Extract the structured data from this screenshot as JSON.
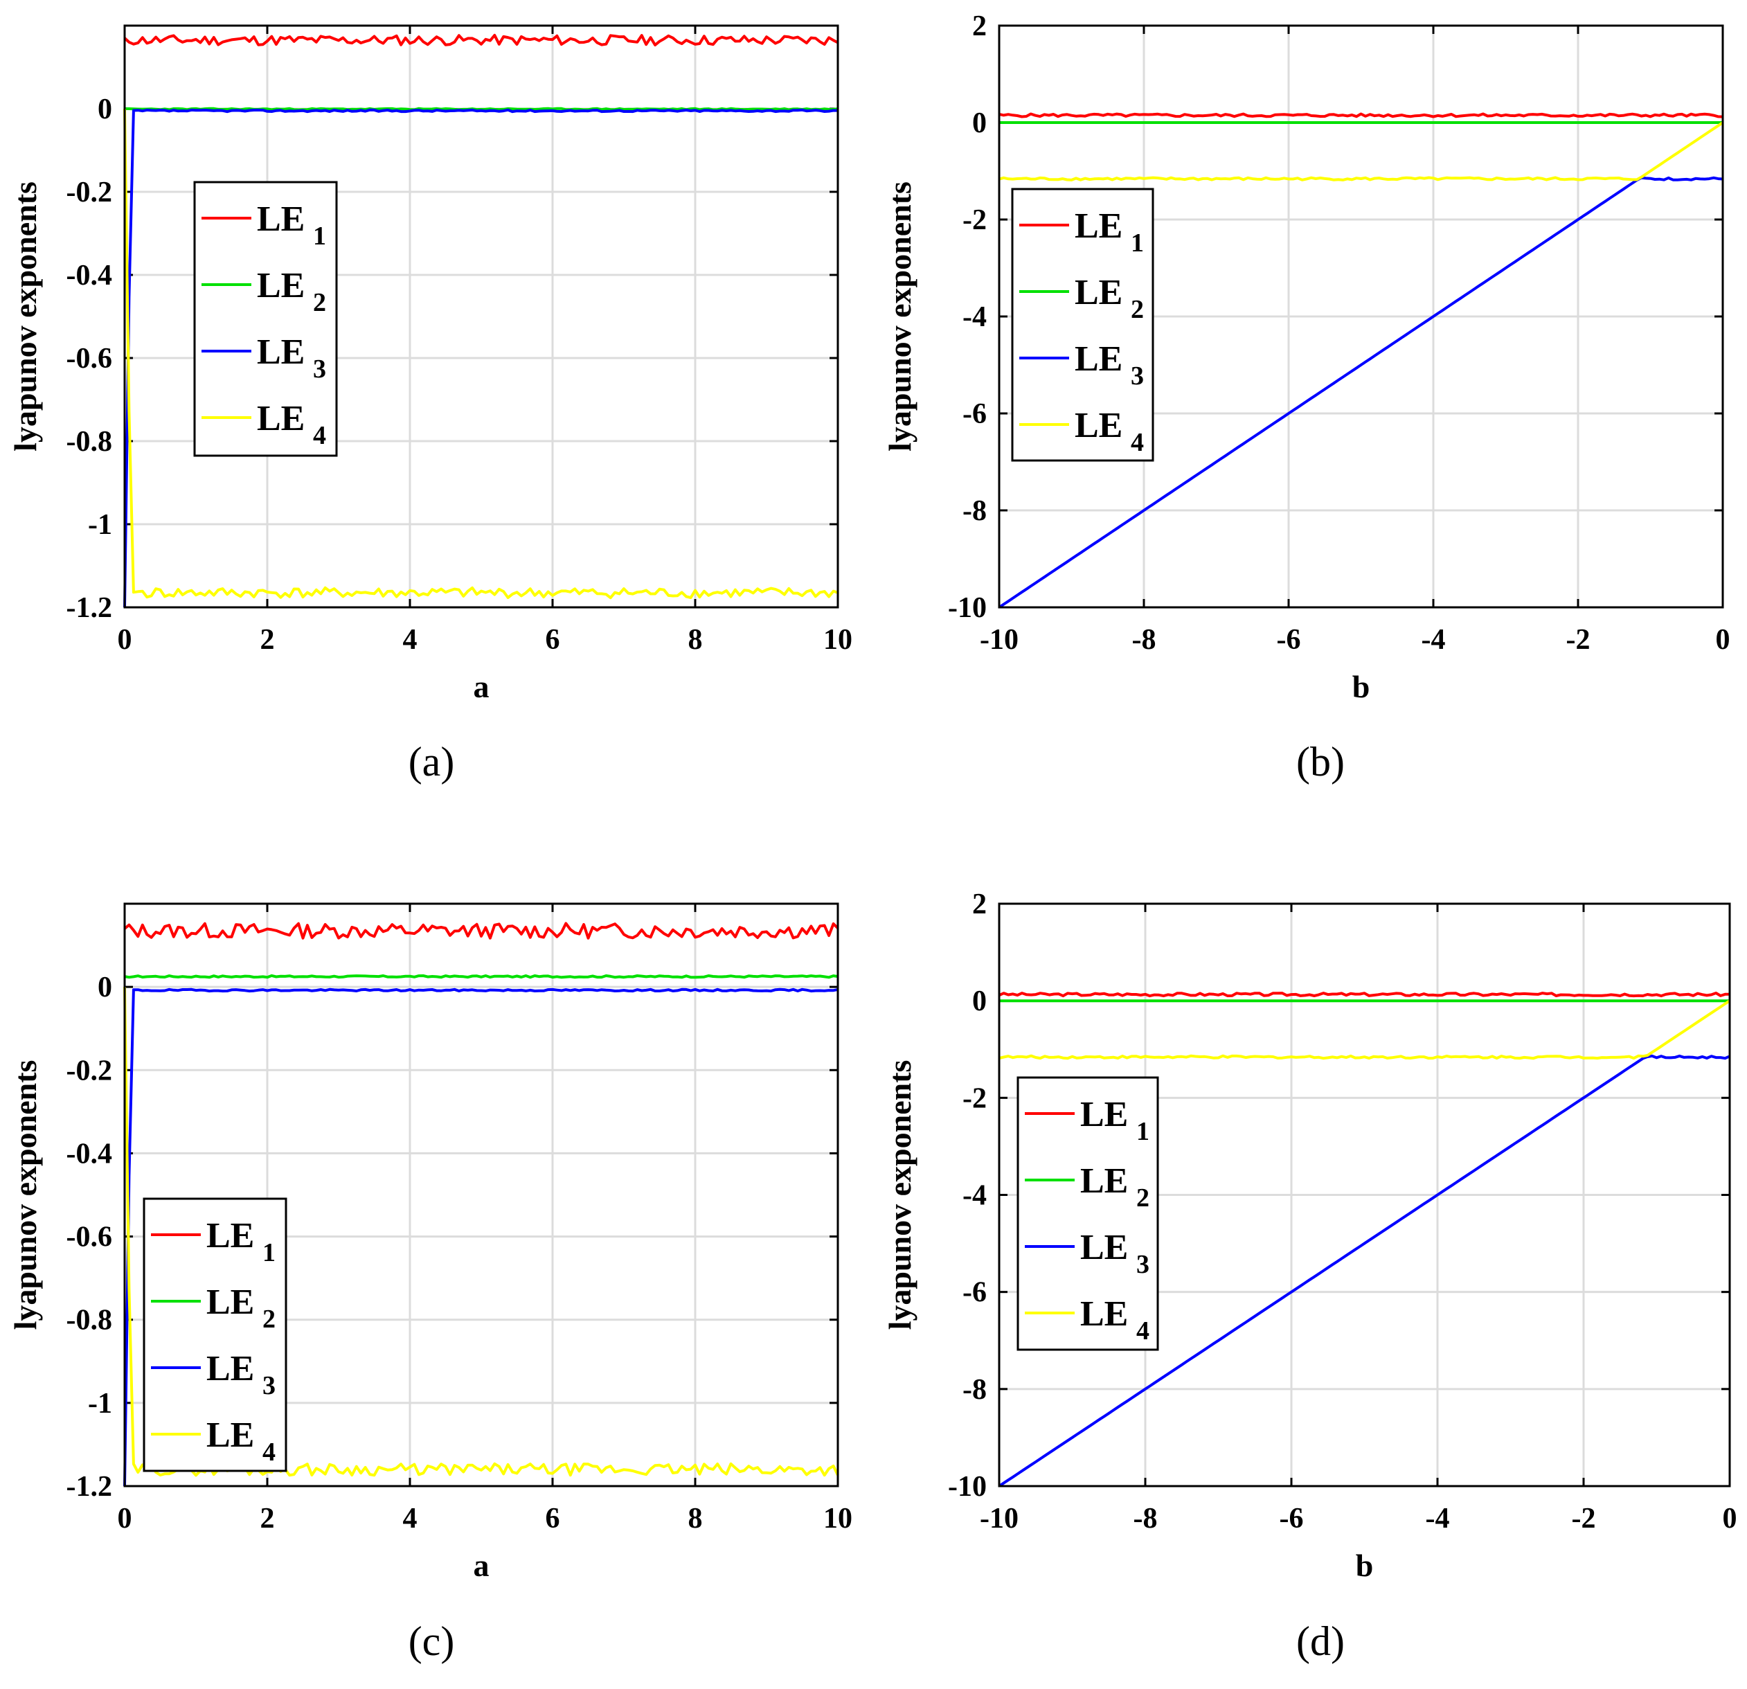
{
  "chart_data": [
    {
      "panel": "(a)",
      "type": "line",
      "xlabel": "a",
      "ylabel": "lyapunov exponents",
      "xlim": [
        0,
        10
      ],
      "ylim": [
        -1.2,
        0.2
      ],
      "xticks": [
        "0",
        "2",
        "4",
        "6",
        "8",
        "10"
      ],
      "yticks": [
        "0",
        "-0.2",
        "-0.4",
        "-0.6",
        "-0.8",
        "-1",
        "-1.2"
      ],
      "ytick_values": [
        0,
        -0.2,
        -0.4,
        -0.6,
        -0.8,
        -1,
        -1.2
      ],
      "grid": true,
      "legend": "left",
      "series": [
        {
          "name": "LE",
          "sub": "1",
          "color": "#ff0000",
          "start": 0.17,
          "level": 0.165,
          "noise": 0.012,
          "settle": 0.0,
          "seed": 11
        },
        {
          "name": "LE",
          "sub": "2",
          "color": "#00e000",
          "start": 0.0,
          "level": -0.001,
          "noise": 0.0015,
          "settle": 0.0,
          "seed": 23
        },
        {
          "name": "LE",
          "sub": "3",
          "color": "#0000ff",
          "start": -1.2,
          "level": -0.005,
          "noise": 0.002,
          "settle": 0.1,
          "seed": 37
        },
        {
          "name": "LE",
          "sub": "4",
          "color": "#ffff00",
          "start": 0.0,
          "level": -1.165,
          "noise": 0.012,
          "settle": 0.1,
          "seed": 41
        }
      ]
    },
    {
      "panel": "(b)",
      "type": "line",
      "xlabel": "b",
      "ylabel": "lyapunov exponents",
      "xlim": [
        -10,
        0
      ],
      "ylim": [
        -10,
        2
      ],
      "xticks": [
        "-10",
        "-8",
        "-6",
        "-4",
        "-2",
        "0"
      ],
      "yticks": [
        "2",
        "0",
        "-2",
        "-4",
        "-6",
        "-8",
        "-10"
      ],
      "ytick_values": [
        2,
        0,
        -2,
        -4,
        -6,
        -8,
        -10
      ],
      "grid": true,
      "legend": "left",
      "series": [
        {
          "name": "LE",
          "sub": "1",
          "color": "#ff0000",
          "kind": "flat",
          "level": 0.15,
          "noise": 0.03,
          "seed": 5
        },
        {
          "name": "LE",
          "sub": "2",
          "color": "#00e000",
          "kind": "flat",
          "level": 0.0,
          "noise": 0.0,
          "seed": 6
        },
        {
          "name": "LE",
          "sub": "3",
          "color": "#0000ff",
          "kind": "min",
          "level": -1.16,
          "noise": 0.025,
          "seed": 7
        },
        {
          "name": "LE",
          "sub": "4",
          "color": "#ffff00",
          "kind": "max",
          "level": -1.16,
          "noise": 0.025,
          "seed": 8
        }
      ]
    },
    {
      "panel": "(c)",
      "type": "line",
      "xlabel": "a",
      "ylabel": "lyapunov exponents",
      "xlim": [
        0,
        10
      ],
      "ylim": [
        -1.2,
        0.2
      ],
      "xticks": [
        "0",
        "2",
        "4",
        "6",
        "8",
        "10"
      ],
      "yticks": [
        "0",
        "-0.2",
        "-0.4",
        "-0.6",
        "-0.8",
        "-1",
        "-1.2"
      ],
      "ytick_values": [
        0,
        -0.2,
        -0.4,
        -0.6,
        -0.8,
        -1,
        -1.2
      ],
      "grid": true,
      "legend": "bottom-left",
      "series": [
        {
          "name": "LE",
          "sub": "1",
          "color": "#ff0000",
          "start": 0.14,
          "level": 0.135,
          "noise": 0.018,
          "settle": 0.0,
          "seed": 13
        },
        {
          "name": "LE",
          "sub": "2",
          "color": "#00e000",
          "start": 0.025,
          "level": 0.025,
          "noise": 0.002,
          "settle": 0.0,
          "seed": 17
        },
        {
          "name": "LE",
          "sub": "3",
          "color": "#0000ff",
          "start": -1.2,
          "level": -0.008,
          "noise": 0.002,
          "settle": 0.1,
          "seed": 19
        },
        {
          "name": "LE",
          "sub": "4",
          "color": "#ffff00",
          "start": 0.0,
          "level": -1.16,
          "noise": 0.014,
          "settle": 0.1,
          "seed": 29
        }
      ]
    },
    {
      "panel": "(d)",
      "type": "line",
      "xlabel": "b",
      "ylabel": "lyapunov exponents",
      "xlim": [
        -10,
        0
      ],
      "ylim": [
        -10,
        2
      ],
      "xticks": [
        "-10",
        "-8",
        "-6",
        "-4",
        "-2",
        "0"
      ],
      "yticks": [
        "2",
        "0",
        "-2",
        "-4",
        "-6",
        "-8",
        "-10"
      ],
      "ytick_values": [
        2,
        0,
        -2,
        -4,
        -6,
        -8,
        -10
      ],
      "grid": true,
      "legend": "left",
      "series": [
        {
          "name": "LE",
          "sub": "1",
          "color": "#ff0000",
          "kind": "flat",
          "level": 0.13,
          "noise": 0.03,
          "seed": 3
        },
        {
          "name": "LE",
          "sub": "2",
          "color": "#00e000",
          "kind": "flat",
          "level": 0.0,
          "noise": 0.0,
          "seed": 4
        },
        {
          "name": "LE",
          "sub": "3",
          "color": "#0000ff",
          "kind": "min",
          "level": -1.16,
          "noise": 0.025,
          "seed": 9
        },
        {
          "name": "LE",
          "sub": "4",
          "color": "#ffff00",
          "kind": "max",
          "level": -1.16,
          "noise": 0.025,
          "seed": 10
        }
      ]
    }
  ]
}
